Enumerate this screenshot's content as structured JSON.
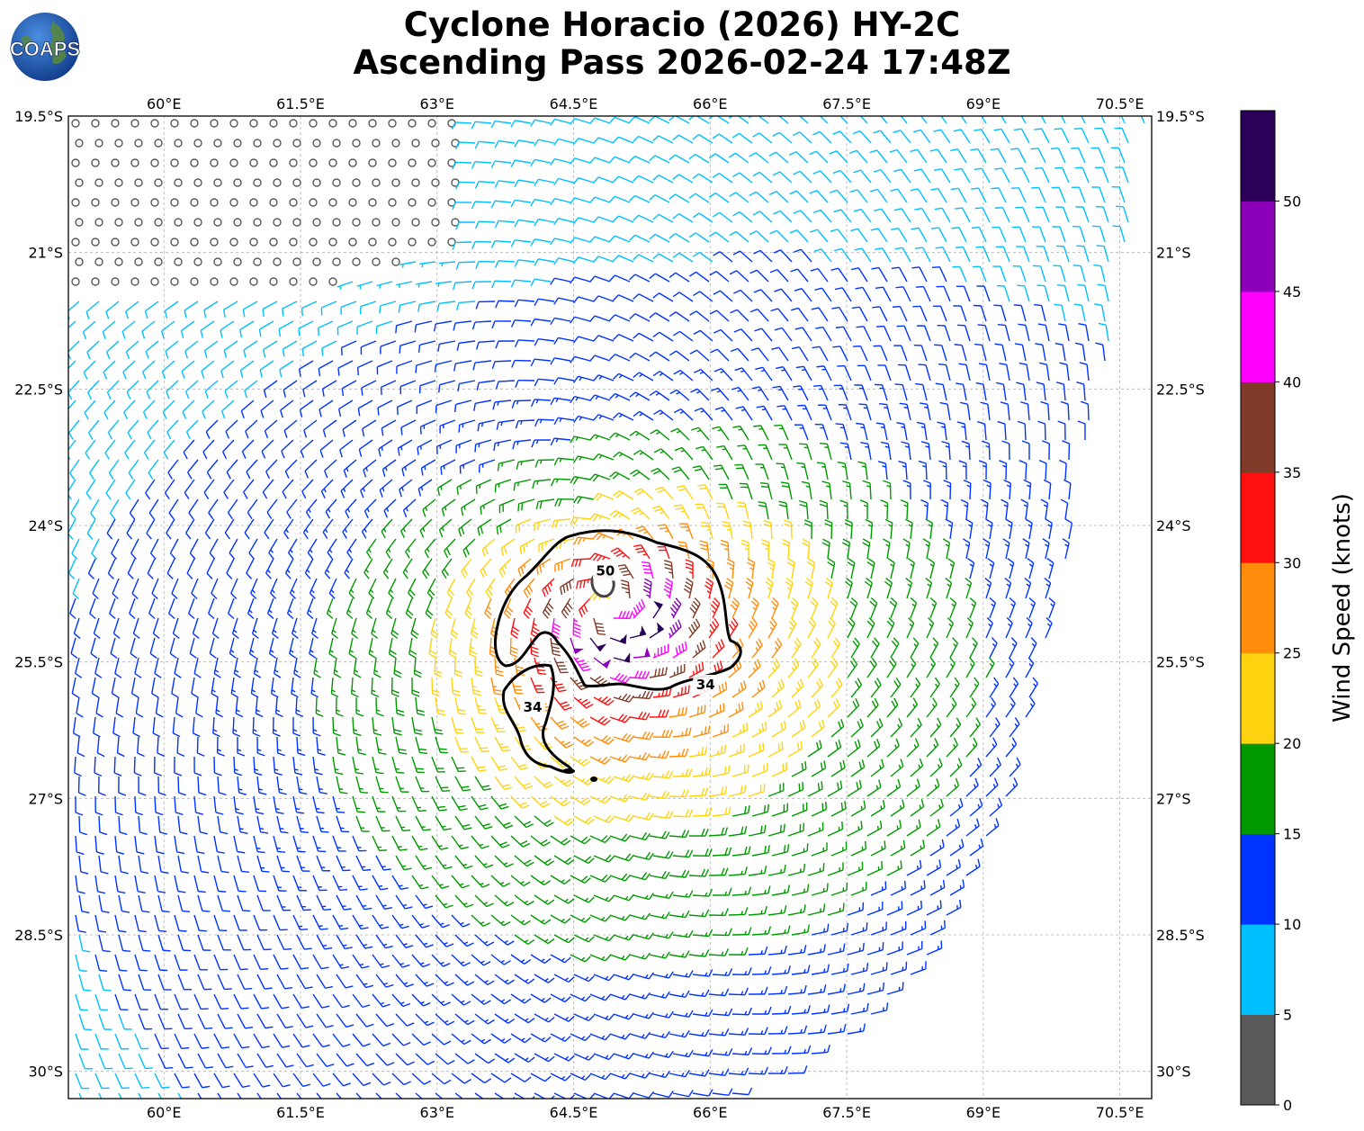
{
  "header": {
    "title_line1": "Cyclone Horacio (2026) HY-2C",
    "title_line2": "Ascending Pass 2026-02-24 17:48Z",
    "logo_text": "COAPS"
  },
  "map": {
    "lon_range": [
      58.95,
      70.85
    ],
    "lat_range": [
      -30.3,
      -19.5
    ],
    "lon_ticks": [
      "60°E",
      "61.5°E",
      "63°E",
      "64.5°E",
      "66°E",
      "67.5°E",
      "69°E",
      "70.5°E"
    ],
    "lon_tick_values": [
      60,
      61.5,
      63,
      64.5,
      66,
      67.5,
      69,
      70.5
    ],
    "lat_ticks": [
      "19.5°S",
      "21°S",
      "22.5°S",
      "24°S",
      "25.5°S",
      "27°S",
      "28.5°S",
      "30°S"
    ],
    "lat_tick_values": [
      -19.5,
      -21,
      -22.5,
      -24,
      -25.5,
      -27,
      -28.5,
      -30
    ],
    "gridlines": true,
    "cyclone_center": {
      "lon": 64.9,
      "lat": -24.9
    },
    "swath_east_edge": [
      [
        70.85,
        -19.5
      ],
      [
        70.4,
        -22.0
      ],
      [
        69.9,
        -24.5
      ],
      [
        69.3,
        -27.0
      ],
      [
        68.4,
        -28.8
      ],
      [
        67.2,
        -29.9
      ],
      [
        66.3,
        -30.3
      ]
    ],
    "contours": [
      {
        "label": "50",
        "level_kt": 50,
        "label_pos": [
          64.85,
          -24.5
        ]
      },
      {
        "label": "34",
        "level_kt": 34,
        "label_pos": [
          65.95,
          -25.75
        ]
      },
      {
        "label": "34",
        "level_kt": 34,
        "label_pos": [
          64.05,
          -26.0
        ]
      }
    ]
  },
  "colorbar": {
    "label": "Wind Speed (knots)",
    "ticks": [
      "0",
      "5",
      "10",
      "15",
      "20",
      "25",
      "30",
      "35",
      "40",
      "45",
      "50"
    ],
    "bins": [
      {
        "min": 0,
        "color": "#595959"
      },
      {
        "min": 5,
        "color": "#00bfff"
      },
      {
        "min": 10,
        "color": "#0033ff"
      },
      {
        "min": 15,
        "color": "#009900"
      },
      {
        "min": 20,
        "color": "#ffd30f"
      },
      {
        "min": 25,
        "color": "#ff8c0a"
      },
      {
        "min": 30,
        "color": "#ff1010"
      },
      {
        "min": 35,
        "color": "#7f3b28"
      },
      {
        "min": 40,
        "color": "#ff00ff"
      },
      {
        "min": 45,
        "color": "#8b00b8"
      },
      {
        "min": 50,
        "color": "#2a0058"
      }
    ]
  },
  "colors": {
    "contour": "#000000",
    "grid": "#b0b0b0"
  }
}
